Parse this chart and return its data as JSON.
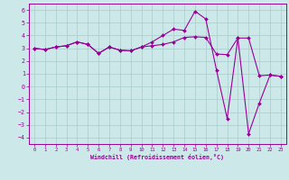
{
  "xlabel": "Windchill (Refroidissement éolien,°C)",
  "bg_color": "#cce8e8",
  "line_color": "#990099",
  "grid_color": "#aacccc",
  "xlim": [
    -0.5,
    23.5
  ],
  "ylim": [
    -4.5,
    6.5
  ],
  "xticks": [
    0,
    1,
    2,
    3,
    4,
    5,
    6,
    7,
    8,
    9,
    10,
    11,
    12,
    13,
    14,
    15,
    16,
    17,
    18,
    19,
    20,
    21,
    22,
    23
  ],
  "yticks": [
    -4,
    -3,
    -2,
    -1,
    0,
    1,
    2,
    3,
    4,
    5,
    6
  ],
  "line1_x": [
    0,
    1,
    2,
    3,
    4,
    5,
    6,
    7,
    8,
    9,
    10,
    11,
    12,
    13,
    14,
    15,
    16,
    17,
    18,
    19,
    20,
    21,
    22,
    23
  ],
  "line1_y": [
    3.0,
    2.9,
    3.1,
    3.2,
    3.5,
    3.3,
    2.6,
    3.1,
    2.85,
    2.8,
    3.1,
    3.2,
    3.3,
    3.5,
    3.85,
    3.9,
    3.85,
    2.55,
    2.5,
    3.8,
    3.8,
    0.85,
    0.9,
    0.8
  ],
  "line2_x": [
    0,
    1,
    2,
    3,
    4,
    5,
    6,
    7,
    8,
    9,
    10,
    11,
    12,
    13,
    14,
    15,
    16,
    17,
    18,
    19,
    20,
    21,
    22,
    23
  ],
  "line2_y": [
    3.0,
    2.9,
    3.1,
    3.2,
    3.5,
    3.3,
    2.6,
    3.1,
    2.85,
    2.8,
    3.1,
    3.5,
    4.0,
    4.5,
    4.4,
    5.9,
    5.3,
    1.3,
    -2.5,
    3.8,
    -3.7,
    -1.3,
    0.9,
    0.8
  ]
}
